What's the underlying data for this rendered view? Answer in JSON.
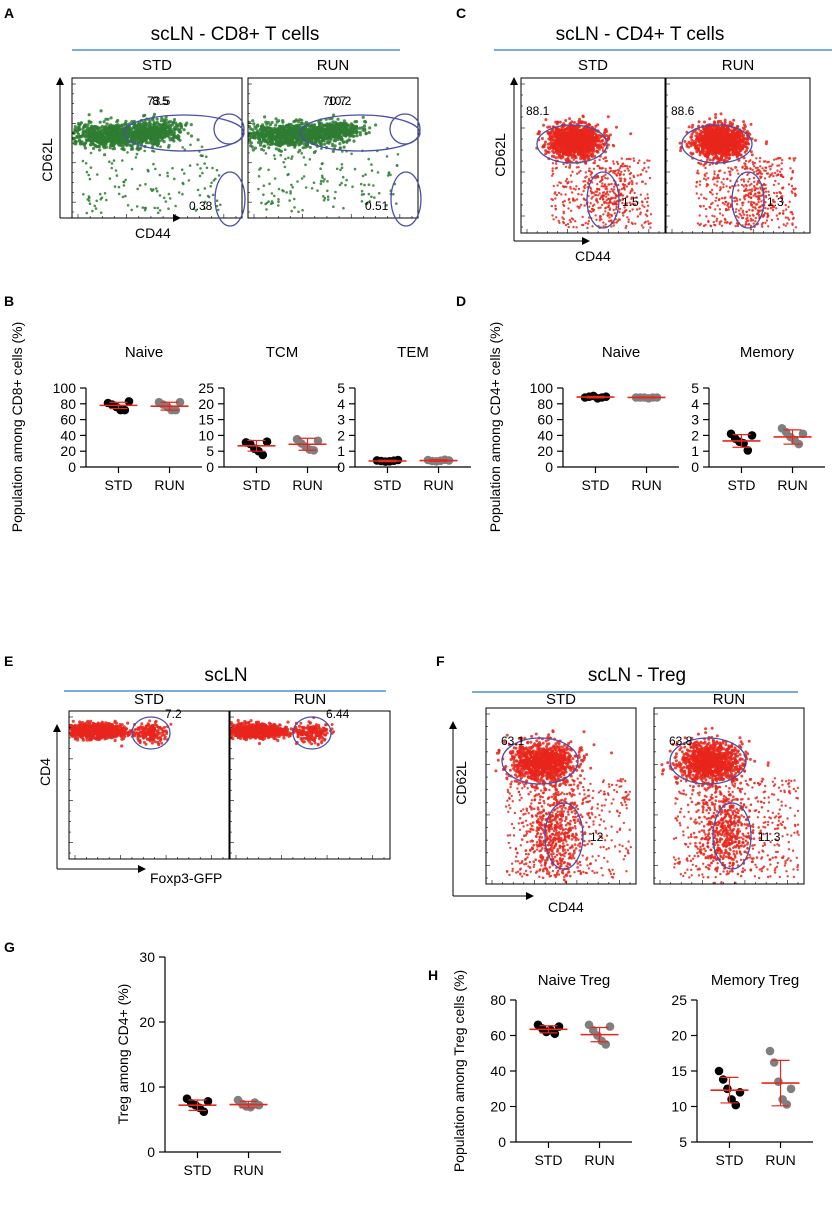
{
  "colors": {
    "black": "#000000",
    "grey": "#7f7f7f",
    "green": "#2e7d32",
    "red": "#e8261c",
    "gate": "#4a4fa8",
    "rule": "#4b8fd6",
    "mean": "#e8261c"
  },
  "panels": [
    {
      "id": "A",
      "label": "A",
      "title": "scLN - CD8+ T cells",
      "yaxis": "CD62L",
      "xaxis": "CD44",
      "plots": [
        {
          "name": "STD",
          "gate_values": [
            "73.5",
            "8.5",
            "0.38"
          ]
        },
        {
          "name": "RUN",
          "gate_values": [
            "70.7",
            "10.2",
            "0.51"
          ]
        }
      ]
    },
    {
      "id": "C",
      "label": "C",
      "title": "scLN - CD4+ T cells",
      "yaxis": "CD62L",
      "xaxis": "CD44",
      "plots": [
        {
          "name": "STD",
          "gate_values": [
            "88.1",
            "1.5"
          ]
        },
        {
          "name": "RUN",
          "gate_values": [
            "88.6",
            "1.3"
          ]
        }
      ]
    },
    {
      "id": "E",
      "label": "E",
      "title": "scLN",
      "yaxis": "CD4",
      "xaxis": "Foxp3-GFP",
      "plots": [
        {
          "name": "STD",
          "gate_values": [
            "7.2"
          ]
        },
        {
          "name": "RUN",
          "gate_values": [
            "6.44"
          ]
        }
      ]
    },
    {
      "id": "F",
      "label": "F",
      "title": "scLN - Treg",
      "yaxis": "CD62L",
      "xaxis": "CD44",
      "plots": [
        {
          "name": "STD",
          "gate_values": [
            "63.1",
            "12"
          ]
        },
        {
          "name": "RUN",
          "gate_values": [
            "63.8",
            "11.3"
          ]
        }
      ]
    }
  ],
  "chart_data": [
    {
      "panel": "B",
      "type": "scatter",
      "title": "Naive",
      "ylabel": "Population among CD8+ cells (%)",
      "ylim": [
        0,
        100
      ],
      "yticks": [
        "0",
        "20",
        "40",
        "60",
        "80",
        "100"
      ],
      "categories": [
        "STD",
        "RUN"
      ],
      "series": [
        {
          "name": "STD",
          "values": [
            81,
            79,
            76,
            72,
            72,
            83
          ]
        },
        {
          "name": "RUN",
          "values": [
            82,
            79,
            76,
            72,
            72,
            82
          ]
        }
      ],
      "mean": [
        78,
        77
      ],
      "sd": [
        4,
        5
      ]
    },
    {
      "panel": "B",
      "type": "scatter",
      "title": "TCM",
      "ylabel": "",
      "ylim": [
        0,
        25
      ],
      "yticks": [
        "0",
        "5",
        "10",
        "15",
        "20",
        "25"
      ],
      "categories": [
        "STD",
        "RUN"
      ],
      "series": [
        {
          "name": "STD",
          "values": [
            7.8,
            7.3,
            5.8,
            5,
            3.8,
            8
          ]
        },
        {
          "name": "RUN",
          "values": [
            8.8,
            7.5,
            6.5,
            5.5,
            5.3,
            8.3
          ]
        }
      ],
      "mean": [
        6.7,
        7.2
      ],
      "sd": [
        1.7,
        1.9
      ]
    },
    {
      "panel": "B",
      "type": "scatter",
      "title": "TEM",
      "ylabel": "",
      "ylim": [
        0,
        5
      ],
      "yticks": [
        "0",
        "1",
        "2",
        "3",
        "4",
        "5"
      ],
      "categories": [
        "STD",
        "RUN"
      ],
      "series": [
        {
          "name": "STD",
          "values": [
            0.42,
            0.38,
            0.34,
            0.36,
            0.4,
            0.44
          ]
        },
        {
          "name": "RUN",
          "values": [
            0.44,
            0.38,
            0.36,
            0.4,
            0.46,
            0.42
          ]
        }
      ],
      "mean": [
        0.38,
        0.41
      ],
      "sd": [
        0.05,
        0.05
      ]
    },
    {
      "panel": "D",
      "type": "scatter",
      "title": "Naive",
      "ylabel": "Population among CD4+ cells (%)",
      "ylim": [
        0,
        100
      ],
      "yticks": [
        "0",
        "20",
        "40",
        "60",
        "80",
        "100"
      ],
      "categories": [
        "STD",
        "RUN"
      ],
      "series": [
        {
          "name": "STD",
          "values": [
            88,
            89,
            90,
            87,
            88,
            89
          ]
        },
        {
          "name": "RUN",
          "values": [
            88,
            88,
            88,
            87,
            88,
            88
          ]
        }
      ],
      "mean": [
        88.5,
        88
      ],
      "sd": [
        1,
        0.6
      ]
    },
    {
      "panel": "D",
      "type": "scatter",
      "title": "Memory",
      "ylabel": "",
      "ylim": [
        0,
        5
      ],
      "yticks": [
        "0",
        "1",
        "2",
        "3",
        "4",
        "5"
      ],
      "categories": [
        "STD",
        "RUN"
      ],
      "series": [
        {
          "name": "STD",
          "values": [
            2.1,
            1.8,
            1.6,
            1.5,
            1.05,
            2.0
          ]
        },
        {
          "name": "RUN",
          "values": [
            2.45,
            2.2,
            1.9,
            1.7,
            1.45,
            2.1
          ]
        }
      ],
      "mean": [
        1.65,
        1.9
      ],
      "sd": [
        0.4,
        0.45
      ]
    },
    {
      "panel": "G",
      "type": "scatter",
      "title": "",
      "ylabel": "Treg among CD4+ (%)",
      "ylim": [
        0,
        30
      ],
      "yticks": [
        "0",
        "10",
        "20",
        "30"
      ],
      "categories": [
        "STD",
        "RUN"
      ],
      "series": [
        {
          "name": "STD",
          "values": [
            8.2,
            7.5,
            7.2,
            6.8,
            6.2,
            7.8
          ]
        },
        {
          "name": "RUN",
          "values": [
            8.0,
            7.4,
            7.0,
            6.9,
            7.6,
            7.2
          ]
        }
      ],
      "mean": [
        7.2,
        7.3
      ],
      "sd": [
        0.8,
        0.5
      ]
    },
    {
      "panel": "H",
      "type": "scatter",
      "title": "Naive Treg",
      "ylabel": "Population among Treg cells (%)",
      "ylim": [
        0,
        80
      ],
      "yticks": [
        "0",
        "20",
        "40",
        "60",
        "80"
      ],
      "categories": [
        "STD",
        "RUN"
      ],
      "series": [
        {
          "name": "STD",
          "values": [
            66,
            64,
            62,
            63,
            61,
            65
          ]
        },
        {
          "name": "RUN",
          "values": [
            66,
            63,
            60,
            57,
            55,
            65
          ]
        }
      ],
      "mean": [
        63.5,
        60.5
      ],
      "sd": [
        2,
        4
      ]
    },
    {
      "panel": "H",
      "type": "scatter",
      "title": "Memory Treg",
      "ylabel": "",
      "ylim": [
        5,
        25
      ],
      "yticks": [
        "5",
        "10",
        "15",
        "20",
        "25"
      ],
      "categories": [
        "STD",
        "RUN"
      ],
      "series": [
        {
          "name": "STD",
          "values": [
            15,
            13.8,
            12.5,
            11,
            10.2,
            12
          ]
        },
        {
          "name": "RUN",
          "values": [
            17.8,
            16.2,
            13.5,
            11,
            10.3,
            12.5
          ]
        }
      ],
      "mean": [
        12.3,
        13.3
      ],
      "sd": [
        1.8,
        3.2
      ]
    }
  ],
  "scatter_panel_labels": {
    "B": "B",
    "D": "D",
    "G": "G",
    "H": "H"
  }
}
